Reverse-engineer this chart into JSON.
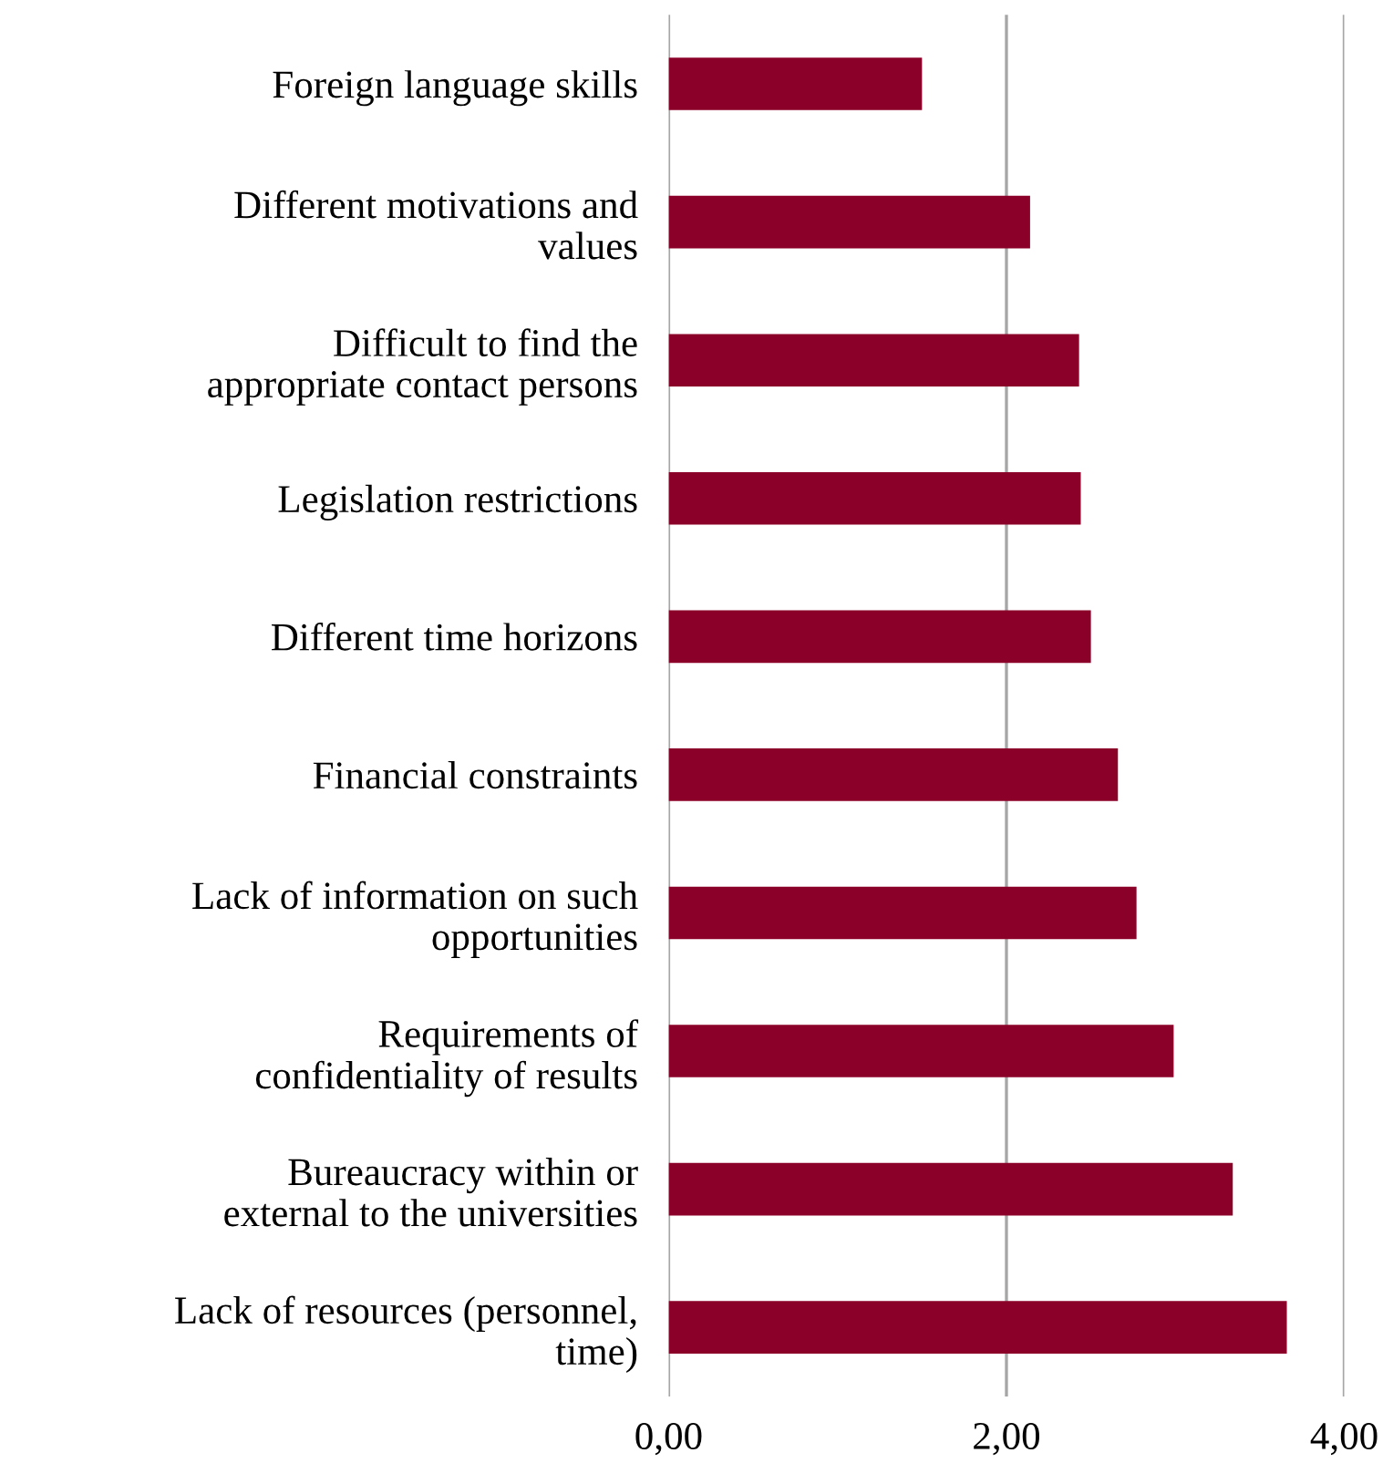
{
  "chart_data": {
    "type": "bar",
    "orientation": "horizontal",
    "categories": [
      "Foreign language skills",
      "Different motivations and\nvalues",
      "Difficult to find the\nappropriate contact persons",
      "Legislation restrictions",
      "Different time horizons",
      "Financial constraints",
      "Lack of information on such\nopportunities",
      "Requirements of\nconfidentiality of results",
      "Bureaucracy within or\nexternal to the universities",
      "Lack of resources (personnel,\ntime)"
    ],
    "values": [
      1.5,
      2.14,
      2.43,
      2.44,
      2.5,
      2.66,
      2.77,
      2.99,
      3.34,
      3.66
    ],
    "color": "#8b0029",
    "xlim": [
      0,
      4
    ],
    "xticks": [
      {
        "value": 0,
        "label": "0,00"
      },
      {
        "value": 2,
        "label": "2,00"
      },
      {
        "value": 4,
        "label": "4,00"
      }
    ],
    "grid": "x"
  }
}
